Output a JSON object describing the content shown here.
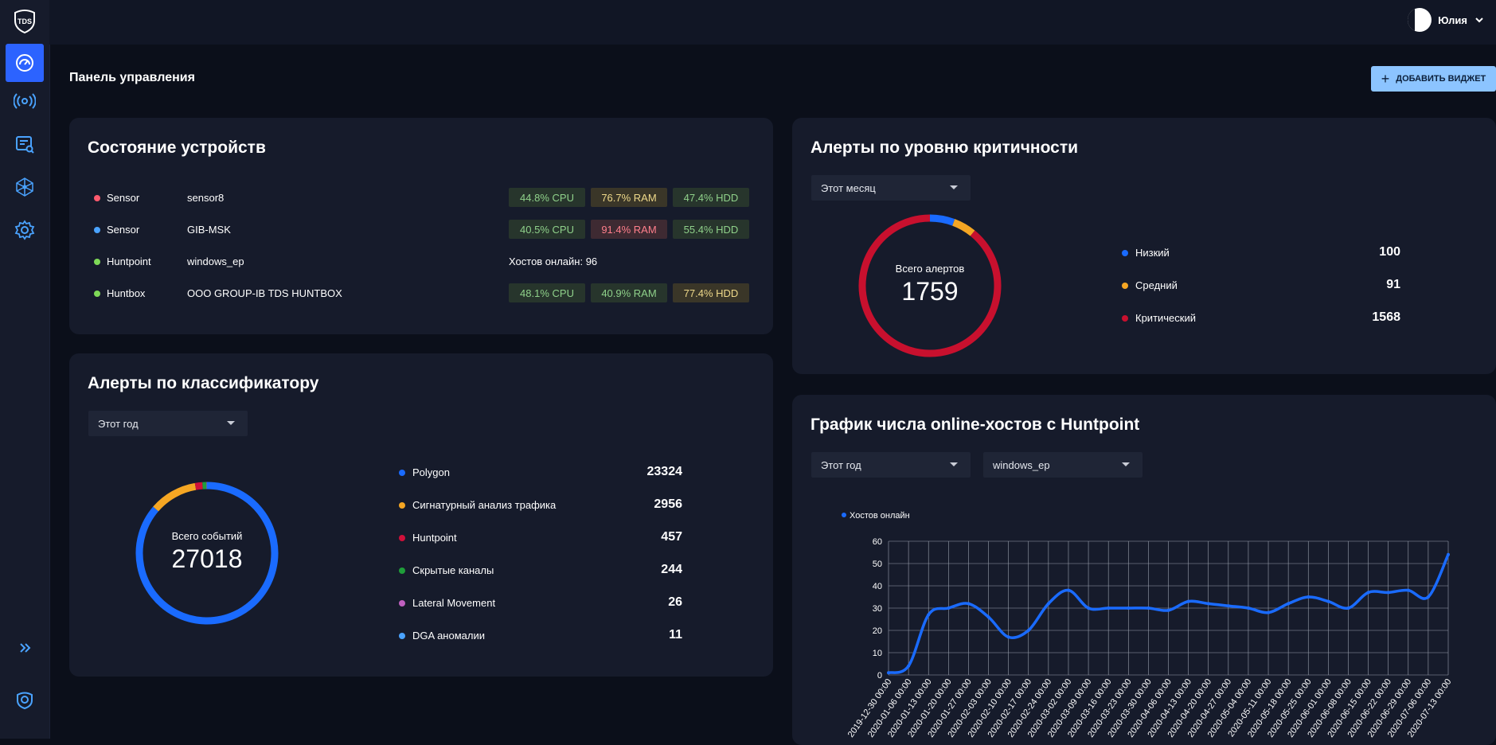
{
  "user": {
    "name": "Юлия"
  },
  "logo_text": "TDS",
  "page": {
    "title": "Панель управления",
    "add_widget": "ДОБАВИТЬ ВИДЖЕТ"
  },
  "devices": {
    "title": "Состояние устройств",
    "rows": [
      {
        "type": "Sensor",
        "name": "sensor8",
        "color": "#ff5a6e",
        "cpu": "44.8% CPU",
        "ram": "76.7% RAM",
        "hdd": "47.4% HDD"
      },
      {
        "type": "Sensor",
        "name": "GIB-MSK",
        "color": "#4aa3ff",
        "cpu": "40.5% CPU",
        "ram": "91.4% RAM",
        "hdd": "55.4% HDD"
      },
      {
        "type": "Huntpoint",
        "name": "windows_ep",
        "color": "#7ed957",
        "hosts_online": "Хостов онлайн: 96"
      },
      {
        "type": "Huntbox",
        "name": "OOO GROUP-IB TDS HUNTBOX",
        "color": "#7ed957",
        "cpu": "48.1% CPU",
        "ram": "40.9% RAM",
        "hdd": "77.4% HDD"
      }
    ]
  },
  "classifier": {
    "title": "Алерты по классификатору",
    "period": "Этот год",
    "center_label": "Всего событий",
    "total": "27018",
    "items": [
      {
        "name": "Polygon",
        "value": 23324,
        "color": "#1a6bff"
      },
      {
        "name": "Сигнатурный анализ трафика",
        "value": 2956,
        "color": "#f5a623"
      },
      {
        "name": "Huntpoint",
        "value": 457,
        "color": "#d0103a"
      },
      {
        "name": "Скрытые каналы",
        "value": 244,
        "color": "#1f9e3a"
      },
      {
        "name": "Lateral Movement",
        "value": 26,
        "color": "#c060c0"
      },
      {
        "name": "DGA аномалии",
        "value": 11,
        "color": "#4aa3ff"
      }
    ]
  },
  "severity": {
    "title": "Алерты по уровню критичности",
    "period": "Этот месяц",
    "center_label": "Всего алертов",
    "total": "1759",
    "items": [
      {
        "name": "Низкий",
        "value": 100,
        "color": "#1a6bff"
      },
      {
        "name": "Средний",
        "value": 91,
        "color": "#f5a623"
      },
      {
        "name": "Критический",
        "value": 1568,
        "color": "#c8102e"
      }
    ]
  },
  "hosts_chart": {
    "title": "График числа online-хостов с Huntpoint",
    "period": "Этот год",
    "host": "windows_ep",
    "chart_data": {
      "type": "line",
      "legend": "Хостов онлайн",
      "line_color": "#1a6bff",
      "ylim": [
        0,
        60
      ],
      "yticks": [
        0,
        10,
        20,
        30,
        40,
        50,
        60
      ],
      "x": [
        "2019-12-30 00:00",
        "2020-01-06 00:00",
        "2020-01-13 00:00",
        "2020-01-20 00:00",
        "2020-01-27 00:00",
        "2020-02-03 00:00",
        "2020-02-10 00:00",
        "2020-02-17 00:00",
        "2020-02-24 00:00",
        "2020-03-02 00:00",
        "2020-03-09 00:00",
        "2020-03-16 00:00",
        "2020-03-23 00:00",
        "2020-03-30 00:00",
        "2020-04-06 00:00",
        "2020-04-13 00:00",
        "2020-04-20 00:00",
        "2020-04-27 00:00",
        "2020-05-04 00:00",
        "2020-05-11 00:00",
        "2020-05-18 00:00",
        "2020-05-25 00:00",
        "2020-06-01 00:00",
        "2020-06-08 00:00",
        "2020-06-15 00:00",
        "2020-06-22 00:00",
        "2020-06-29 00:00",
        "2020-07-06 00:00",
        "2020-07-13 00:00"
      ],
      "y": [
        1,
        4,
        27,
        30,
        32,
        26,
        17,
        20,
        32,
        38,
        30,
        30,
        30,
        30,
        29,
        33,
        32,
        31,
        30,
        28,
        32,
        35,
        33,
        30,
        37,
        37,
        38,
        35,
        54
      ]
    }
  }
}
